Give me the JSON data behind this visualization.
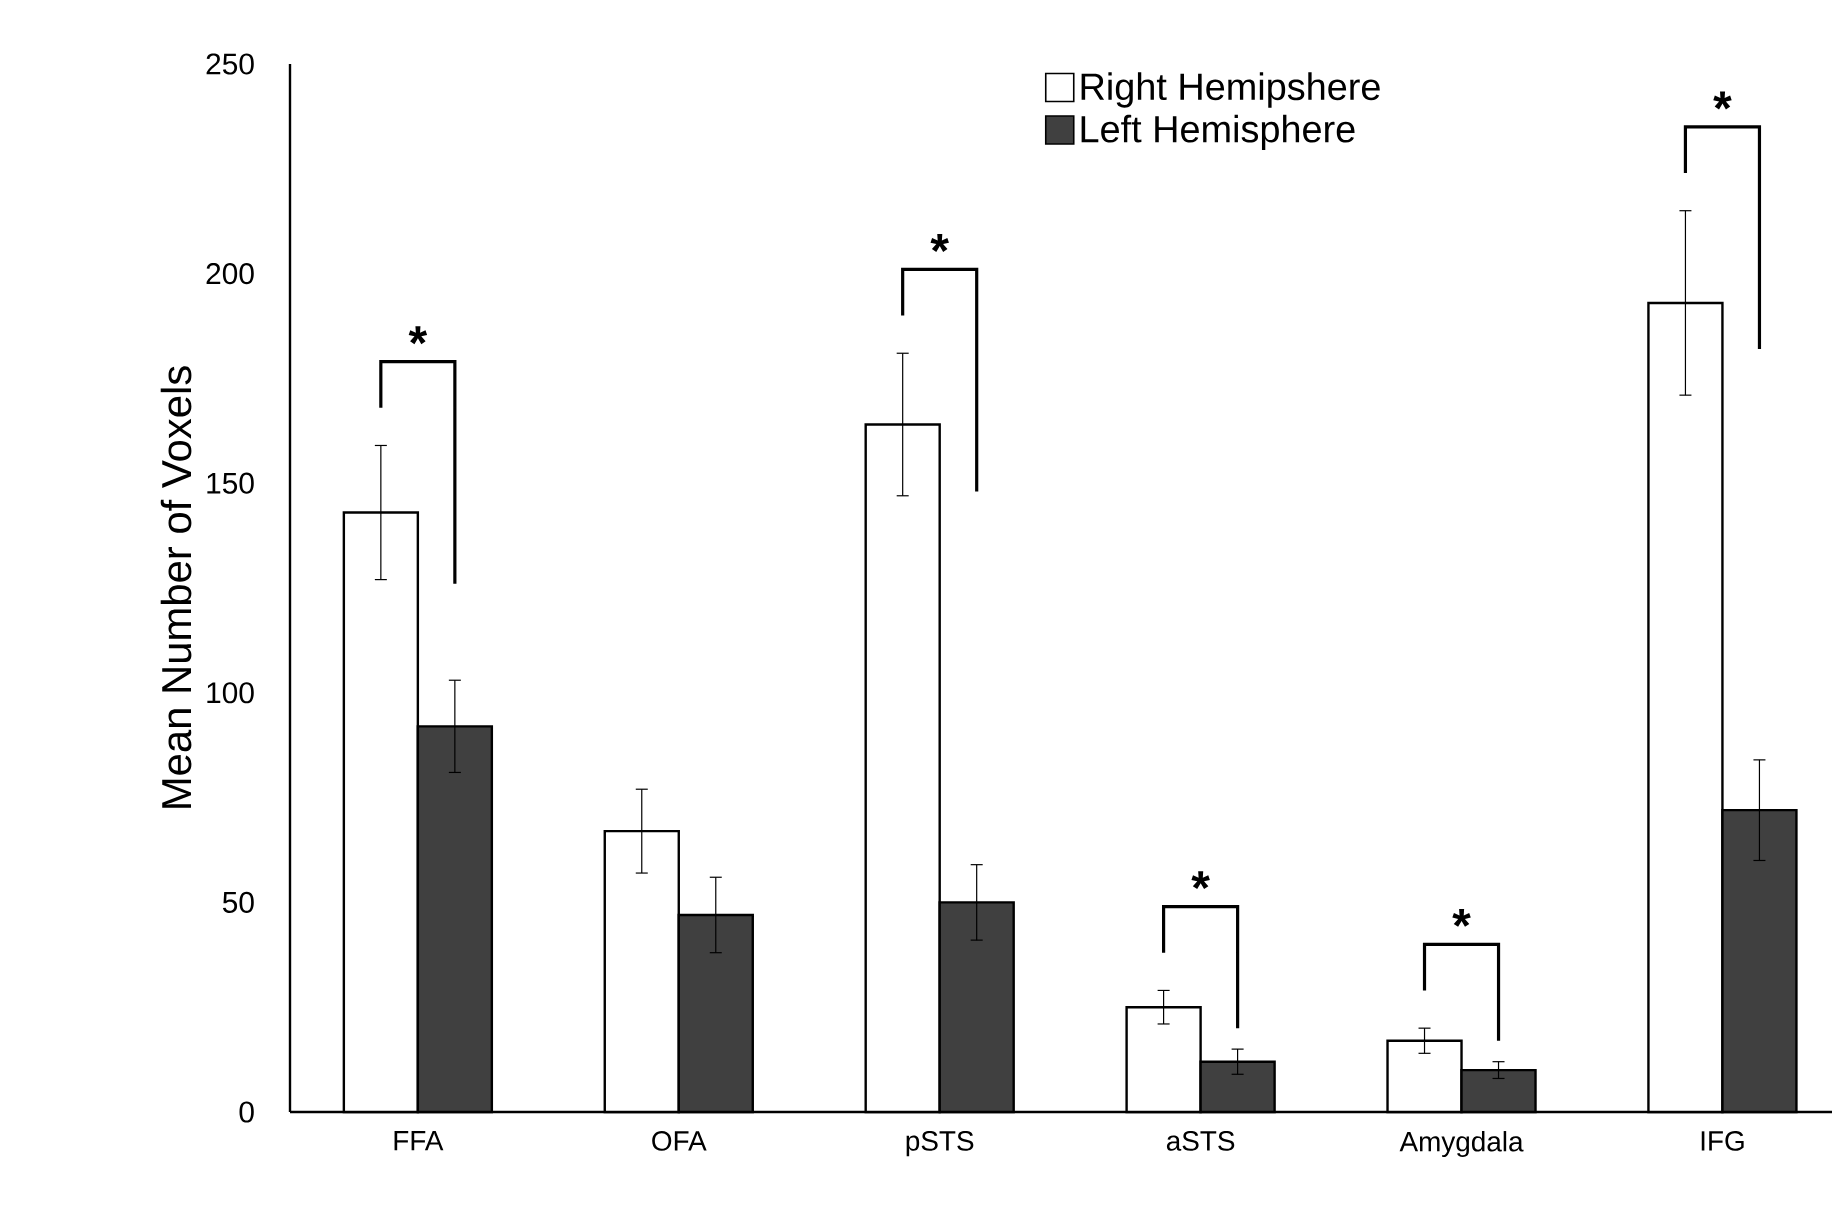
{
  "chart_data": {
    "type": "bar",
    "ylabel": "Mean Number of Voxels",
    "categories": [
      "FFA",
      "OFA",
      "pSTS",
      "aSTS",
      "Amygdala",
      "IFG"
    ],
    "series": [
      {
        "name": "Right Hemipshere",
        "color": "#ffffff",
        "values": [
          143,
          67,
          164,
          25,
          17,
          193
        ],
        "errors": [
          16,
          10,
          17,
          4,
          3,
          22
        ]
      },
      {
        "name": "Left Hemisphere",
        "color": "#404040",
        "values": [
          92,
          47,
          50,
          12,
          10,
          72
        ],
        "errors": [
          11,
          9,
          9,
          3,
          2,
          12
        ]
      }
    ],
    "ylim": [
      0,
      250
    ],
    "yticks": [
      0,
      50,
      100,
      150,
      200,
      250
    ],
    "legend": "top",
    "annotations": [
      "*",
      "*",
      "*",
      "*",
      "*"
    ]
  }
}
